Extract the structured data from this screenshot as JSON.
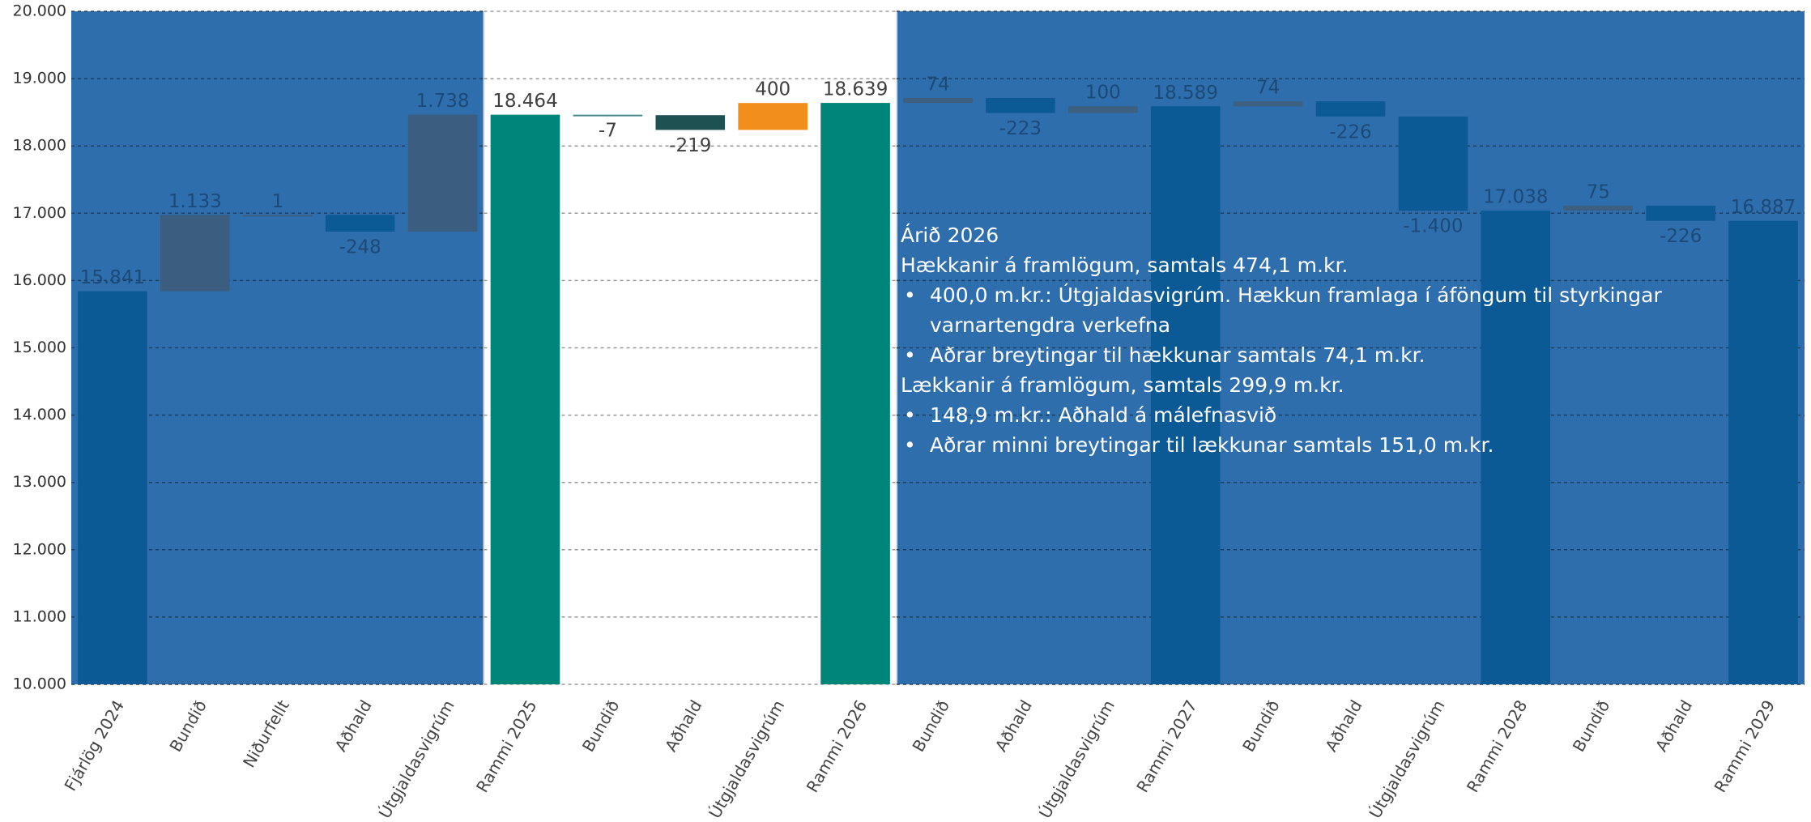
{
  "chart_data": {
    "type": "waterfall",
    "categories": [
      "Fjárlög 2024",
      "Bundið",
      "Niðurfellt",
      "Aðhald",
      "Útgjaldasvigrúm",
      "Rammi 2025",
      "Bundið",
      "Aðhald",
      "Útgjaldasvigrúm",
      "Rammi 2026",
      "Bundið",
      "Aðhald",
      "Útgjaldasvigrúm",
      "Rammi 2027",
      "Bundið",
      "Aðhald",
      "Útgjaldasvigrúm",
      "Rammi 2028",
      "Bundið",
      "Aðhald",
      "Rammi 2029"
    ],
    "values": [
      15841,
      1133,
      1,
      -248,
      1738,
      18464,
      -7,
      -219,
      400,
      18639,
      74,
      -223,
      100,
      18589,
      74,
      -226,
      -1400,
      17038,
      75,
      -226,
      16887
    ],
    "value_labels": [
      "15.841",
      "1.133",
      "1",
      "-248",
      "1.738",
      "18.464",
      "-7",
      "-219",
      "400",
      "18.639",
      "74",
      "-223",
      "100",
      "18.589",
      "74",
      "-226",
      "-1.400",
      "17.038",
      "75",
      "-226",
      "16.887"
    ],
    "measures": [
      "total",
      "relative",
      "relative",
      "relative",
      "relative",
      "total",
      "relative",
      "relative",
      "relative",
      "total",
      "relative",
      "relative",
      "relative",
      "total",
      "relative",
      "relative",
      "relative",
      "total",
      "relative",
      "relative",
      "total"
    ],
    "colors": [
      "#0b5a96",
      "#3b5e80",
      "#3b5e80",
      "#0b5a96",
      "#3b5e80",
      "#00857a",
      "#4a8a8e",
      "#1e5252",
      "#f28e1c",
      "#00857a",
      "#3d6080",
      "#0b5a96",
      "#3d6080",
      "#0b5a96",
      "#3d6080",
      "#0b5a96",
      "#0b5a96",
      "#0b5a96",
      "#3d6080",
      "#0b5a96",
      "#0b5a96"
    ],
    "ylim": [
      10000,
      20000
    ],
    "yticks": [
      {
        "value": 10000,
        "label": "10.000"
      },
      {
        "value": 11000,
        "label": "11.000"
      },
      {
        "value": 12000,
        "label": "12.000"
      },
      {
        "value": 13000,
        "label": "13.000"
      },
      {
        "value": 14000,
        "label": "14.000"
      },
      {
        "value": 15000,
        "label": "15.000"
      },
      {
        "value": 16000,
        "label": "16.000"
      },
      {
        "value": 17000,
        "label": "17.000"
      },
      {
        "value": 18000,
        "label": "18.000"
      },
      {
        "value": 19000,
        "label": "19.000"
      },
      {
        "value": 20000,
        "label": "20.000"
      }
    ],
    "grid": true,
    "annotation": {
      "title": "Árið 2026",
      "sections": [
        {
          "heading": "Hækkanir á framlögum, samtals 474,1 m.kr.",
          "bullets": [
            "400,0 m.kr.: Útgjaldasvigrúm. Hækkun framlaga í áföngum til styrkingar varnartengdra verkefna",
            "Aðrar breytingar til hækkunar samtals 74,1 m.kr."
          ]
        },
        {
          "heading": "Lækkanir á framlögum, samtals 299,9 m.kr.",
          "bullets": [
            "148,9 m.kr.: Aðhald á málefnasvið",
            "Aðrar minni breytingar til lækkunar samtals 151,0 m.kr."
          ]
        }
      ]
    }
  }
}
